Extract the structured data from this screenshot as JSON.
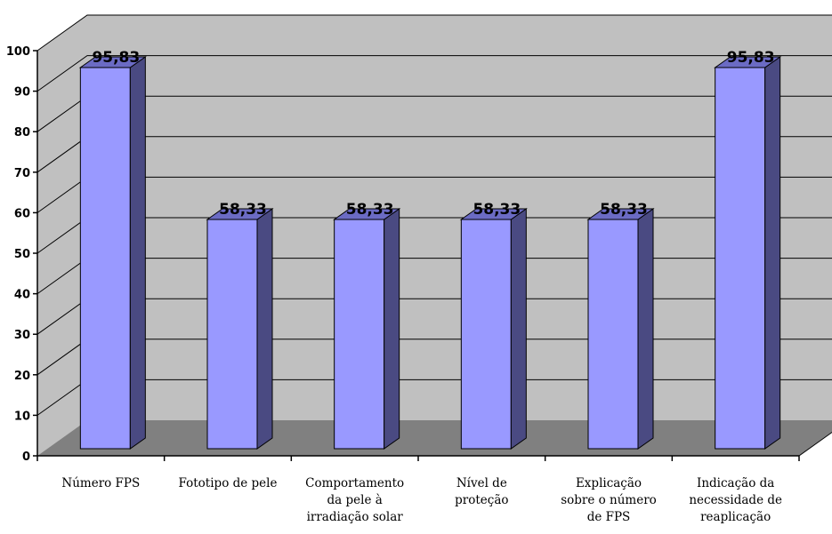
{
  "chart_data": {
    "type": "bar",
    "title": "",
    "xlabel": "",
    "ylabel": "",
    "ylim": [
      0,
      100
    ],
    "yticks": [
      "0",
      "10",
      "20",
      "30",
      "40",
      "50",
      "60",
      "70",
      "80",
      "90",
      "100"
    ],
    "categories": [
      [
        "Número FPS"
      ],
      [
        "Fototipo de pele"
      ],
      [
        "Comportamento",
        "da pele à",
        "irradiação solar"
      ],
      [
        "Nível de",
        "proteção"
      ],
      [
        "Explicação",
        "sobre o número",
        "de FPS"
      ],
      [
        "Indicação da",
        "necessidade de",
        "reaplicação"
      ]
    ],
    "values": [
      95.83,
      58.33,
      58.33,
      58.33,
      58.33,
      95.83
    ],
    "data_labels": [
      "95,83",
      "58,33",
      "58,33",
      "58,33",
      "58,33",
      "95,83"
    ],
    "grid": true,
    "legend": "none",
    "colors": {
      "wall": "#c0c0c0",
      "floor": "#808080",
      "bar_front": "#9999ff",
      "bar_side": "#4a4a82",
      "bar_top": "#6b6bc4",
      "grid": "#000000"
    }
  }
}
